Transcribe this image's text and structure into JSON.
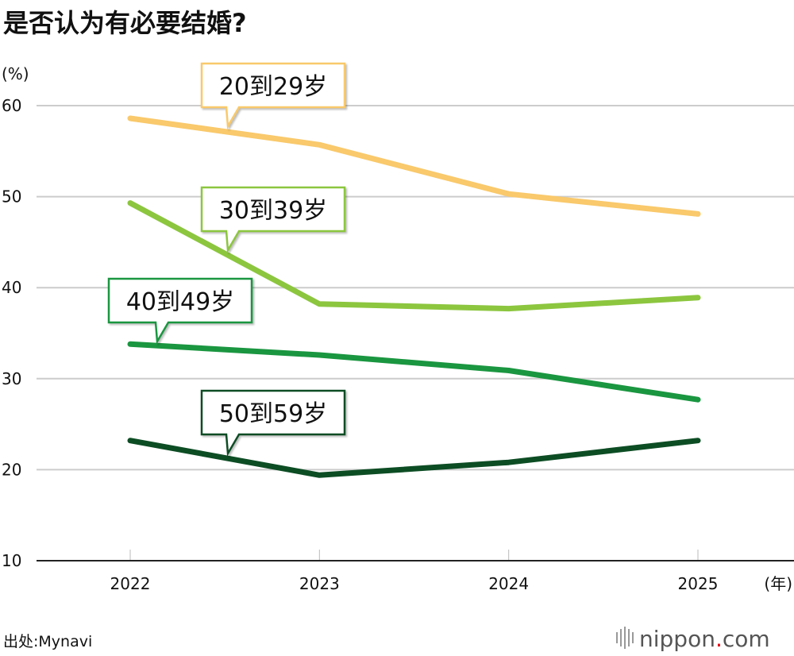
{
  "chart_data": {
    "type": "line",
    "title": "是否认为有必要结婚?",
    "ylabel": "(%)",
    "xlabel": "(年)",
    "ylim": [
      10,
      60
    ],
    "yticks": [
      10,
      20,
      30,
      40,
      50,
      60
    ],
    "categories": [
      "2022",
      "2023",
      "2024",
      "2025"
    ],
    "grid": true,
    "series": [
      {
        "name": "20到29岁",
        "values": [
          58.6,
          55.7,
          50.3,
          48.1
        ],
        "color": "#f9c96b"
      },
      {
        "name": "30到39岁",
        "values": [
          49.3,
          38.2,
          37.7,
          38.9
        ],
        "color": "#8cc63f"
      },
      {
        "name": "40到49岁",
        "values": [
          33.8,
          32.6,
          30.9,
          27.7
        ],
        "color": "#1a9640"
      },
      {
        "name": "50到59岁",
        "values": [
          23.2,
          19.4,
          20.8,
          23.2
        ],
        "color": "#0d4d24"
      }
    ],
    "source": "出处:Mynavi"
  },
  "branding": {
    "logo_name": "nippon",
    "logo_dot": ".",
    "logo_tld": "com",
    "logo_dot_color": "#e60012"
  },
  "colors": {
    "grid": "#cccccc",
    "axis": "#222222"
  }
}
